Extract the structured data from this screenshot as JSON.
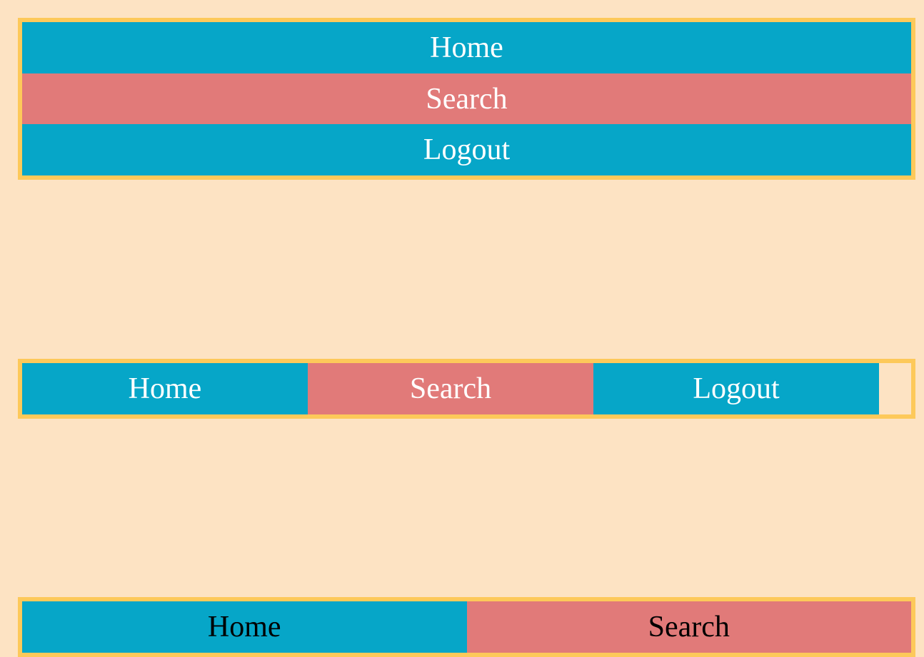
{
  "colors": {
    "background": "#fde3c3",
    "border": "#fdc95a",
    "item_blue": "#06a6c8",
    "item_red": "#e17a79"
  },
  "nav_vertical": {
    "items": [
      {
        "label": "Home"
      },
      {
        "label": "Search"
      },
      {
        "label": "Logout"
      }
    ]
  },
  "nav_horizontal": {
    "items": [
      {
        "label": "Home"
      },
      {
        "label": "Search"
      },
      {
        "label": "Logout"
      }
    ]
  },
  "nav_half": {
    "items": [
      {
        "label": "Home"
      },
      {
        "label": "Search"
      }
    ]
  }
}
